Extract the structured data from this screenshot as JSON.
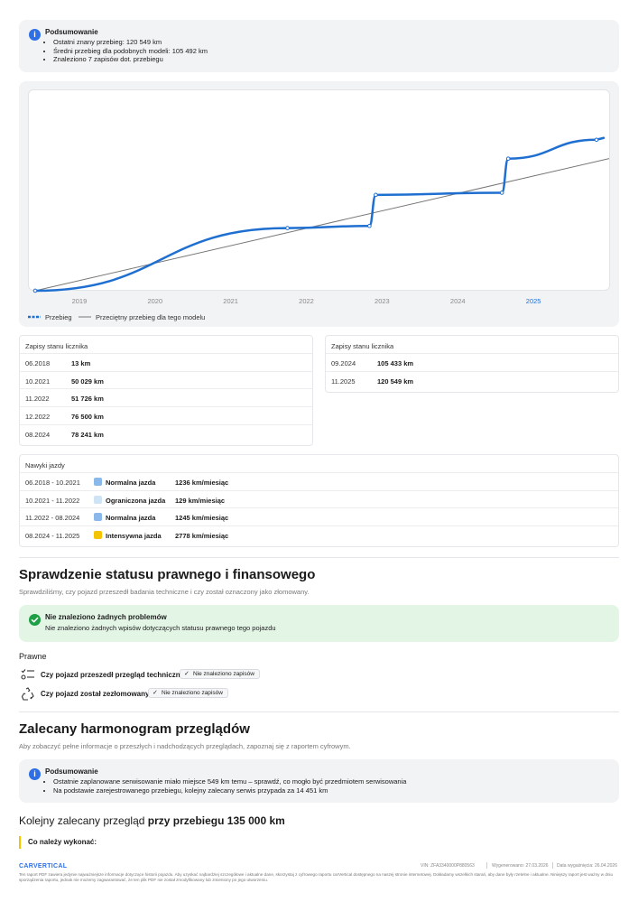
{
  "summary": {
    "title": "Podsumowanie",
    "items": [
      "Ostatni znany przebieg: 120 549 km",
      "Średni przebieg dla podobnych modeli: 105 492 km",
      "Znaleziono 7 zapisów dot. przebiegu"
    ]
  },
  "chart_data": {
    "type": "line",
    "x_ticks": [
      "2019",
      "2020",
      "2021",
      "2022",
      "2023",
      "2024",
      "2025"
    ],
    "highlight_tick": "2025",
    "xlim": [
      "2018-05",
      "2026-01"
    ],
    "ylim": [
      0,
      160000
    ],
    "grid": false,
    "legend_position": "bottom-left",
    "series": [
      {
        "name": "Przebieg",
        "style": "thick blue with dotted markers",
        "color": "#1f6fd1",
        "points": [
          {
            "x": "2018-06",
            "y": 13
          },
          {
            "x": "2021-10",
            "y": 50029
          },
          {
            "x": "2022-11",
            "y": 51726
          },
          {
            "x": "2022-12",
            "y": 76500
          },
          {
            "x": "2024-08",
            "y": 78241
          },
          {
            "x": "2024-09",
            "y": 105433
          },
          {
            "x": "2025-11",
            "y": 120549
          }
        ]
      },
      {
        "name": "Przeciętny przebieg dla tego modelu",
        "color": "#777777",
        "points": [
          {
            "x": "2018-06",
            "y": 0
          },
          {
            "x": "2026-01",
            "y": 105492
          }
        ]
      }
    ]
  },
  "odometer_left": {
    "title": "Zapisy stanu licznika",
    "rows": [
      {
        "date": "06.2018",
        "km": "13 km"
      },
      {
        "date": "10.2021",
        "km": "50 029 km"
      },
      {
        "date": "11.2022",
        "km": "51 726 km"
      },
      {
        "date": "12.2022",
        "km": "76 500 km"
      },
      {
        "date": "08.2024",
        "km": "78 241 km"
      }
    ]
  },
  "odometer_right": {
    "title": "Zapisy stanu licznika",
    "rows": [
      {
        "date": "09.2024",
        "km": "105 433 km"
      },
      {
        "date": "11.2025",
        "km": "120 549 km"
      }
    ]
  },
  "driving": {
    "title": "Nawyki jazdy",
    "rows": [
      {
        "period": "06.2018 - 10.2021",
        "color": "#8ab8ea",
        "label": "Normalna jazda",
        "rate": "1236 km/miesiąc"
      },
      {
        "period": "10.2021 - 11.2022",
        "color": "#cfe3f7",
        "label": "Ograniczona jazda",
        "rate": "129 km/miesiąc"
      },
      {
        "period": "11.2022 - 08.2024",
        "color": "#8ab8ea",
        "label": "Normalna jazda",
        "rate": "1245 km/miesiąc"
      },
      {
        "period": "08.2024 - 11.2025",
        "color": "#f5c400",
        "label": "Intensywna jazda",
        "rate": "2778 km/miesiąc"
      }
    ]
  },
  "legal": {
    "heading": "Sprawdzenie statusu prawnego i finansowego",
    "subtitle": "Sprawdziliśmy, czy pojazd przeszedł badania techniczne i czy został oznaczony jako złomowany.",
    "ok_title": "Nie znaleziono żadnych problemów",
    "ok_text": "Nie znaleziono żadnych wpisów dotyczących statusu prawnego tego pojazdu",
    "section_label": "Prawne",
    "q1": "Czy pojazd przeszedł przegląd techniczny?",
    "q1_badge": "Nie znaleziono zapisów",
    "q2": "Czy pojazd został zezłomowany?",
    "q2_badge": "Nie znaleziono zapisów"
  },
  "service": {
    "heading": "Zalecany harmonogram przeglądów",
    "subtitle": "Aby zobaczyć pełne informacje o przeszłych i nadchodzących przeglądach, zapoznaj się z raportem cyfrowym.",
    "summary_title": "Podsumowanie",
    "items": [
      "Ostatnie zaplanowane serwisowanie miało miejsce 549 km temu – sprawdź, co mogło być przedmiotem serwisowania",
      "Na podstawie zarejestrowanego przebiegu, kolejny zalecany serwis przypada za 14 451 km"
    ],
    "next_prefix": "Kolejny zalecany przegląd",
    "next_value": "przy przebiegu 135 000 km",
    "todo": "Co należy wykonać:"
  },
  "footer": {
    "logo": "CARVERTICAL",
    "vin": "VIN: ZFA3340000P880563",
    "generated": "Wygenerowano: 27.03.2026",
    "expires": "Data wygaśnięcia: 26.04.2026",
    "disclaimer": "Ten raport PDF zawiera jedynie najważniejsze informacje dotyczące historii pojazdu. Aby uzyskać najbardziej szczegółowe i aktualne dane, skorzystaj z cyfrowego raportu carVertical dostępnego na naszej stronie internetowej. Dokładamy wszelkich starań, aby dane były rzetelne i aktualne. Niniejszy raport jest ważny w dniu sporządzenia raportu, jednak nie możemy zagwarantować, że ten plik PDF nie został zmodyfikowany lub zmieniony po jego utworzeniu."
  }
}
